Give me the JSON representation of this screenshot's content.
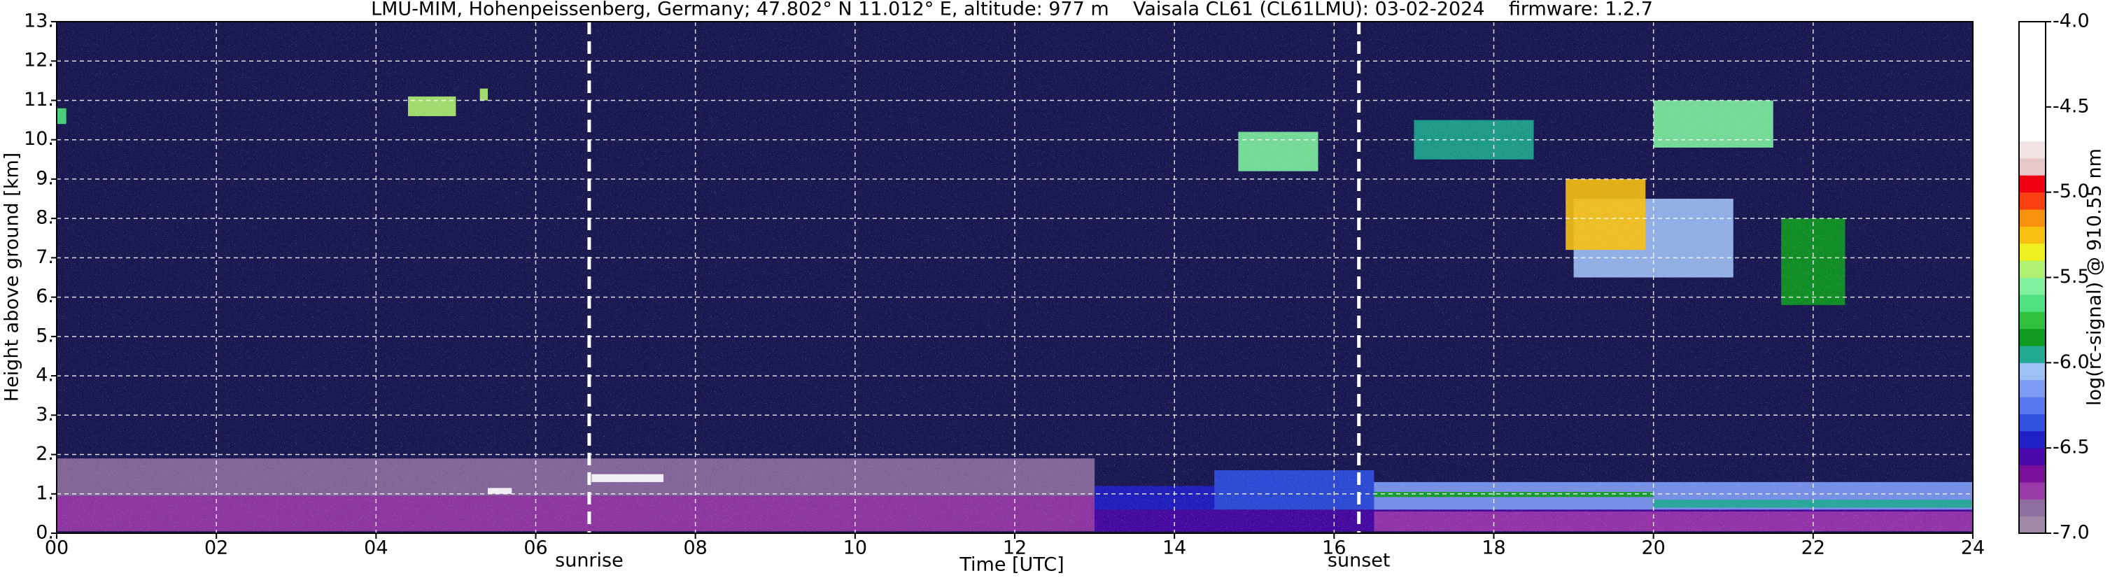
{
  "chart_data": {
    "type": "heatmap",
    "title": "LMU-MIM, Hohenpeissenberg, Germany; 47.802° N 11.012° E, altitude: 977 m    Vaisala CL61 (CL61LMU): 03-02-2024    firmware: 1.2.7",
    "xlabel": "Time [UTC]",
    "ylabel": "Height above ground [km]",
    "xlim": [
      0,
      24
    ],
    "xticks": [
      {
        "value": 0,
        "label": "00"
      },
      {
        "value": 2,
        "label": "02"
      },
      {
        "value": 4,
        "label": "04"
      },
      {
        "value": 6,
        "label": "06"
      },
      {
        "value": 8,
        "label": "08"
      },
      10,
      12,
      14,
      16,
      18,
      20,
      22,
      24
    ],
    "ylim": [
      0,
      13
    ],
    "yticks": [
      {
        "value": 0,
        "label": "0."
      },
      {
        "value": 1,
        "label": "1."
      },
      {
        "value": 2,
        "label": "2."
      },
      {
        "value": 3,
        "label": "3."
      },
      {
        "value": 4,
        "label": "4."
      },
      {
        "value": 5,
        "label": "5."
      },
      {
        "value": 6,
        "label": "6."
      },
      {
        "value": 7,
        "label": "7."
      },
      {
        "value": 8,
        "label": "8."
      },
      {
        "value": 9,
        "label": "9."
      },
      {
        "value": 10,
        "label": "10."
      },
      {
        "value": 11,
        "label": "11."
      },
      {
        "value": 12,
        "label": "12."
      },
      {
        "value": 13,
        "label": "13."
      }
    ],
    "grid": true,
    "background_value": -6.55,
    "events": [
      {
        "label": "sunrise",
        "x": 6.67
      },
      {
        "label": "sunset",
        "x": 16.31
      }
    ],
    "regions": [
      {
        "x": [
          0,
          13
        ],
        "y": [
          0.05,
          0.95
        ],
        "value": -6.75
      },
      {
        "x": [
          0,
          13
        ],
        "y": [
          0.95,
          1.9
        ],
        "value": -6.85
      },
      {
        "x": [
          13,
          24
        ],
        "y": [
          0.05,
          0.6
        ],
        "value": -6.55
      },
      {
        "x": [
          13,
          14.5
        ],
        "y": [
          0.6,
          1.2
        ],
        "value": -6.45
      },
      {
        "x": [
          14.5,
          16.5
        ],
        "y": [
          0.6,
          1.6
        ],
        "value": -6.35
      },
      {
        "x": [
          16.5,
          24
        ],
        "y": [
          0.6,
          1.3
        ],
        "value": -6.15
      },
      {
        "x": [
          16.5,
          20
        ],
        "y": [
          0.92,
          1.05
        ],
        "value": -5.85
      },
      {
        "x": [
          20,
          24
        ],
        "y": [
          0.65,
          0.85
        ],
        "value": -5.95
      },
      {
        "x": [
          16.5,
          24
        ],
        "y": [
          0.05,
          0.55
        ],
        "value": -6.75
      },
      {
        "x": [
          6.7,
          7.6
        ],
        "y": [
          1.3,
          1.5
        ],
        "value": -4.2
      },
      {
        "x": [
          5.4,
          5.7
        ],
        "y": [
          1.0,
          1.15
        ],
        "value": -4.2
      },
      {
        "x": [
          0,
          0.12
        ],
        "y": [
          10.4,
          10.8
        ],
        "value": -5.65
      },
      {
        "x": [
          4.4,
          5.0
        ],
        "y": [
          10.6,
          11.1
        ],
        "value": -5.45
      },
      {
        "x": [
          5.3,
          5.4
        ],
        "y": [
          11.0,
          11.3
        ],
        "value": -5.45
      },
      {
        "x": [
          14.8,
          15.8
        ],
        "y": [
          9.2,
          10.2
        ],
        "value": -5.55
      },
      {
        "x": [
          17,
          18.5
        ],
        "y": [
          9.5,
          10.5
        ],
        "value": -5.95
      },
      {
        "x": [
          19,
          21
        ],
        "y": [
          6.5,
          8.5
        ],
        "value": -6.05
      },
      {
        "x": [
          18.9,
          19.9
        ],
        "y": [
          7.2,
          9.0
        ],
        "value": -5.25
      },
      {
        "x": [
          20,
          21.5
        ],
        "y": [
          9.8,
          11.0
        ],
        "value": -5.55
      },
      {
        "x": [
          21.6,
          22.4
        ],
        "y": [
          5.8,
          8.0
        ],
        "value": -5.85
      }
    ],
    "colorbar": {
      "label": "log(rc-signal) @ 910.55 nm",
      "lim": [
        -7,
        -4
      ],
      "ticks": [
        {
          "value": -4,
          "label": "-4.0"
        },
        -4.5,
        {
          "value": -5,
          "label": "-5.0"
        },
        -5.5,
        {
          "value": -6,
          "label": "-6.0"
        },
        -6.5,
        {
          "value": -7,
          "label": "-7.0"
        }
      ],
      "colors": [
        "#a08aa8",
        "#8f6fa0",
        "#9a3aa8",
        "#7a0f9a",
        "#4a08a8",
        "#2020c8",
        "#3050e0",
        "#5a78ee",
        "#7f9cf4",
        "#9ec0f4",
        "#20a890",
        "#109a20",
        "#30c040",
        "#50e080",
        "#80f0a0",
        "#b0f070",
        "#f0f020",
        "#f8c010",
        "#f89010",
        "#f84010",
        "#f00010",
        "#e8c8c8",
        "#f2e4e4",
        "#ffffff",
        "#ffffff",
        "#ffffff",
        "#ffffff",
        "#ffffff",
        "#ffffff",
        "#ffffff"
      ]
    }
  }
}
